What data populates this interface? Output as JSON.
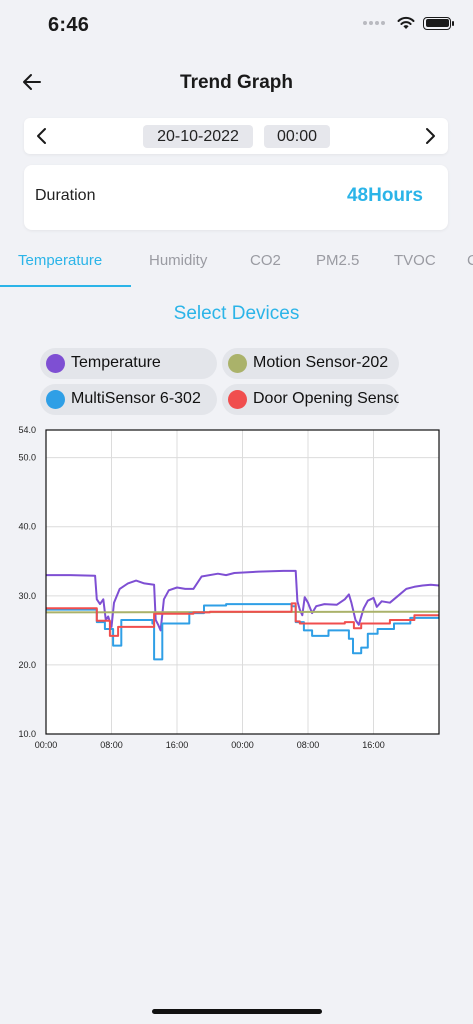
{
  "status_bar": {
    "time": "6:46"
  },
  "header": {
    "title": "Trend Graph"
  },
  "date_picker": {
    "date": "20-10-2022",
    "time": "00:00"
  },
  "duration": {
    "label": "Duration",
    "value": "48Hours"
  },
  "tabs": [
    {
      "label": "Temperature",
      "active": true
    },
    {
      "label": "Humidity",
      "active": false
    },
    {
      "label": "CO2",
      "active": false
    },
    {
      "label": "PM2.5",
      "active": false
    },
    {
      "label": "TVOC",
      "active": false
    }
  ],
  "select_devices_label": "Select Devices",
  "devices": [
    {
      "label": "Temperature",
      "color": "#7e4fd3"
    },
    {
      "label": "Motion Sensor-202",
      "color": "#aab26a"
    },
    {
      "label": "MultiSensor 6-302",
      "color": "#2f9fe6"
    },
    {
      "label": "Door Opening Sensor",
      "color": "#f04e4e"
    }
  ],
  "colors": {
    "accent": "#2bb4e8",
    "chip_bg": "#e3e5ea",
    "background": "#f1f2f6"
  },
  "chart_data": {
    "type": "line",
    "ylim": [
      10.0,
      54.0
    ],
    "y_ticks": [
      "10.0",
      "20.0",
      "30.0",
      "40.0",
      "50.0",
      "54.0"
    ],
    "y_tick_values": [
      10,
      20,
      30,
      40,
      50,
      54
    ],
    "xlim": [
      0,
      48
    ],
    "x_ticks": [
      "00:00",
      "08:00",
      "16:00",
      "00:00",
      "08:00",
      "16:00"
    ],
    "x_tick_values": [
      0,
      8,
      16,
      24,
      32,
      40
    ],
    "grid": true,
    "series": [
      {
        "name": "Temperature",
        "color": "#7e4fd3",
        "points": [
          [
            0,
            33.0
          ],
          [
            3,
            33.0
          ],
          [
            6,
            32.9
          ],
          [
            6.2,
            29.5
          ],
          [
            6.6,
            28.8
          ],
          [
            7.0,
            29.5
          ],
          [
            7.3,
            26.5
          ],
          [
            7.6,
            27.0
          ],
          [
            8.0,
            25.5
          ],
          [
            8.3,
            29.0
          ],
          [
            9.0,
            31.0
          ],
          [
            10,
            31.8
          ],
          [
            11,
            32.2
          ],
          [
            12,
            31.8
          ],
          [
            13.2,
            31.6
          ],
          [
            13.4,
            26.5
          ],
          [
            13.7,
            25.8
          ],
          [
            14.0,
            25.0
          ],
          [
            14.4,
            29.5
          ],
          [
            15,
            30.8
          ],
          [
            16,
            31.2
          ],
          [
            17,
            31.0
          ],
          [
            18,
            31.0
          ],
          [
            19,
            32.8
          ],
          [
            21,
            33.2
          ],
          [
            22,
            33.0
          ],
          [
            23,
            33.3
          ],
          [
            26,
            33.5
          ],
          [
            29,
            33.6
          ],
          [
            30.5,
            33.6
          ],
          [
            30.7,
            29.2
          ],
          [
            31,
            28.0
          ],
          [
            31.3,
            27.2
          ],
          [
            31.6,
            29.8
          ],
          [
            32,
            29.0
          ],
          [
            32.5,
            27.5
          ],
          [
            33,
            28.5
          ],
          [
            34,
            28.8
          ],
          [
            35.5,
            28.7
          ],
          [
            36.5,
            29.5
          ],
          [
            37,
            30.2
          ],
          [
            37.3,
            29.0
          ],
          [
            37.8,
            26.5
          ],
          [
            38.2,
            25.8
          ],
          [
            38.8,
            28.2
          ],
          [
            39.3,
            29.3
          ],
          [
            40,
            29.7
          ],
          [
            40.4,
            28.4
          ],
          [
            41,
            29.2
          ],
          [
            42,
            29.0
          ],
          [
            43,
            30.0
          ],
          [
            44,
            31.0
          ],
          [
            45,
            31.3
          ],
          [
            46,
            31.5
          ],
          [
            47,
            31.6
          ],
          [
            48,
            31.5
          ]
        ]
      },
      {
        "name": "Motion Sensor-202",
        "color": "#aab26a",
        "points": [
          [
            0,
            27.6
          ],
          [
            48,
            27.7
          ]
        ]
      },
      {
        "name": "MultiSensor 6-302",
        "color": "#2f9fe6",
        "points": [
          [
            0,
            28.0
          ],
          [
            6.2,
            28.0
          ],
          [
            6.2,
            26.2
          ],
          [
            7.2,
            26.2
          ],
          [
            7.2,
            25.2
          ],
          [
            8.2,
            25.2
          ],
          [
            8.2,
            22.8
          ],
          [
            9.2,
            22.8
          ],
          [
            9.2,
            26.5
          ],
          [
            13,
            26.5
          ],
          [
            13,
            26.0
          ],
          [
            13.2,
            26.0
          ],
          [
            13.2,
            20.8
          ],
          [
            14.2,
            20.8
          ],
          [
            14.2,
            26.0
          ],
          [
            17.5,
            26.0
          ],
          [
            17.5,
            27.5
          ],
          [
            19.3,
            27.5
          ],
          [
            19.3,
            28.6
          ],
          [
            22,
            28.6
          ],
          [
            22,
            28.8
          ],
          [
            30,
            28.8
          ],
          [
            30,
            28.5
          ],
          [
            30.5,
            28.5
          ],
          [
            30.5,
            26.2
          ],
          [
            31.5,
            26.2
          ],
          [
            31.5,
            25.0
          ],
          [
            32.5,
            25.0
          ],
          [
            32.5,
            24.2
          ],
          [
            34.5,
            24.2
          ],
          [
            34.5,
            25.0
          ],
          [
            37,
            25.0
          ],
          [
            37,
            23.8
          ],
          [
            37.5,
            23.8
          ],
          [
            37.5,
            21.7
          ],
          [
            38.5,
            21.7
          ],
          [
            38.5,
            22.5
          ],
          [
            39.3,
            22.5
          ],
          [
            39.3,
            24.5
          ],
          [
            40.5,
            24.5
          ],
          [
            40.5,
            25.2
          ],
          [
            42.5,
            25.2
          ],
          [
            42.5,
            26.0
          ],
          [
            44.5,
            26.0
          ],
          [
            44.5,
            26.8
          ],
          [
            48,
            26.8
          ]
        ]
      },
      {
        "name": "Door Opening Sensor",
        "color": "#f04e4e",
        "points": [
          [
            0,
            28.2
          ],
          [
            6.2,
            28.2
          ],
          [
            6.2,
            26.4
          ],
          [
            7.8,
            26.4
          ],
          [
            7.8,
            24.2
          ],
          [
            8.8,
            24.2
          ],
          [
            8.8,
            25.5
          ],
          [
            13.2,
            25.5
          ],
          [
            13.2,
            27.4
          ],
          [
            18,
            27.4
          ],
          [
            18,
            27.6
          ],
          [
            20,
            27.6
          ],
          [
            20,
            27.7
          ],
          [
            30,
            27.7
          ],
          [
            30,
            28.9
          ],
          [
            30.5,
            28.9
          ],
          [
            30.5,
            26.3
          ],
          [
            31,
            26.3
          ],
          [
            31,
            26.0
          ],
          [
            36.5,
            26.0
          ],
          [
            36.5,
            26.2
          ],
          [
            37.6,
            26.2
          ],
          [
            37.6,
            25.3
          ],
          [
            38.5,
            25.3
          ],
          [
            38.5,
            26.0
          ],
          [
            42,
            26.0
          ],
          [
            42,
            26.5
          ],
          [
            45,
            26.5
          ],
          [
            45,
            27.2
          ],
          [
            48,
            27.2
          ]
        ]
      }
    ]
  }
}
